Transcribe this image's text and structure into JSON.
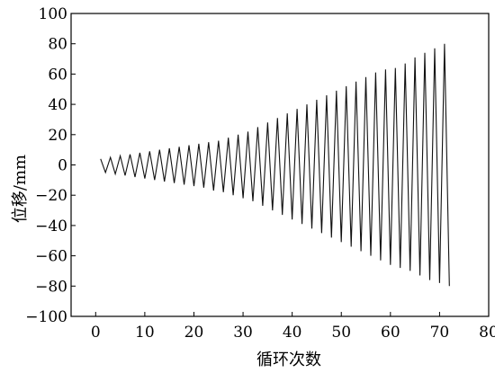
{
  "chart_data": {
    "type": "line",
    "xlabel": "循环次数",
    "ylabel": "位移/mm",
    "xlim": [
      -5,
      80
    ],
    "ylim": [
      -100,
      100
    ],
    "x_ticks": [
      0,
      10,
      20,
      30,
      40,
      50,
      60,
      70,
      80
    ],
    "y_ticks": [
      -100,
      -80,
      -60,
      -40,
      -20,
      0,
      20,
      40,
      60,
      80,
      100
    ],
    "x_tick_labels": [
      "0",
      "10",
      "20",
      "30",
      "40",
      "50",
      "60",
      "70",
      "80"
    ],
    "y_tick_labels": [
      "−100",
      "−80",
      "−60",
      "−40",
      "−20",
      "0",
      "20",
      "40",
      "60",
      "80",
      "100"
    ],
    "grid": false,
    "series": [
      {
        "x": [
          1.0,
          2.0,
          3.0,
          4.0,
          5.0,
          6.0,
          7.0,
          8.0,
          9.0,
          10.0,
          11.0,
          12.0,
          13.0,
          14.0,
          15.0,
          16.0,
          17.0,
          18.0,
          19.0,
          20.0,
          21.0,
          22.0,
          23.0,
          24.0,
          25.0,
          26.0,
          27.0,
          28.0,
          29.0,
          30.0,
          31.0,
          32.0,
          33.0,
          34.0,
          35.0,
          36.0,
          37.0,
          38.0,
          39.0,
          40.0,
          41.0,
          42.0,
          43.0,
          44.0,
          45.0,
          46.0,
          47.0,
          48.0,
          49.0,
          50.0,
          51.0,
          52.0,
          53.0,
          54.0,
          55.0,
          56.0,
          57.0,
          58.0,
          59.0,
          60.0,
          61.0,
          62.0,
          63.0,
          64.0,
          65.0,
          66.0,
          67.0,
          68.0,
          69.0,
          70.0,
          71.0,
          72.0
        ],
        "y": [
          4,
          -5,
          5,
          -6,
          6,
          -7,
          7,
          -8,
          8,
          -9,
          9,
          -10,
          10,
          -11,
          11,
          -12,
          12,
          -13,
          13,
          -14,
          14,
          -15,
          15,
          -17,
          16,
          -18,
          18,
          -20,
          20,
          -22,
          22,
          -24,
          25,
          -27,
          28,
          -30,
          31,
          -33,
          34,
          -36,
          37,
          -39,
          40,
          -42,
          43,
          -45,
          46,
          -48,
          49,
          -51,
          52,
          -54,
          55,
          -57,
          58,
          -60,
          61,
          -63,
          63,
          -66,
          64,
          -68,
          67,
          -70,
          71,
          -73,
          74,
          -76,
          77,
          -78,
          80,
          -80
        ]
      }
    ]
  }
}
